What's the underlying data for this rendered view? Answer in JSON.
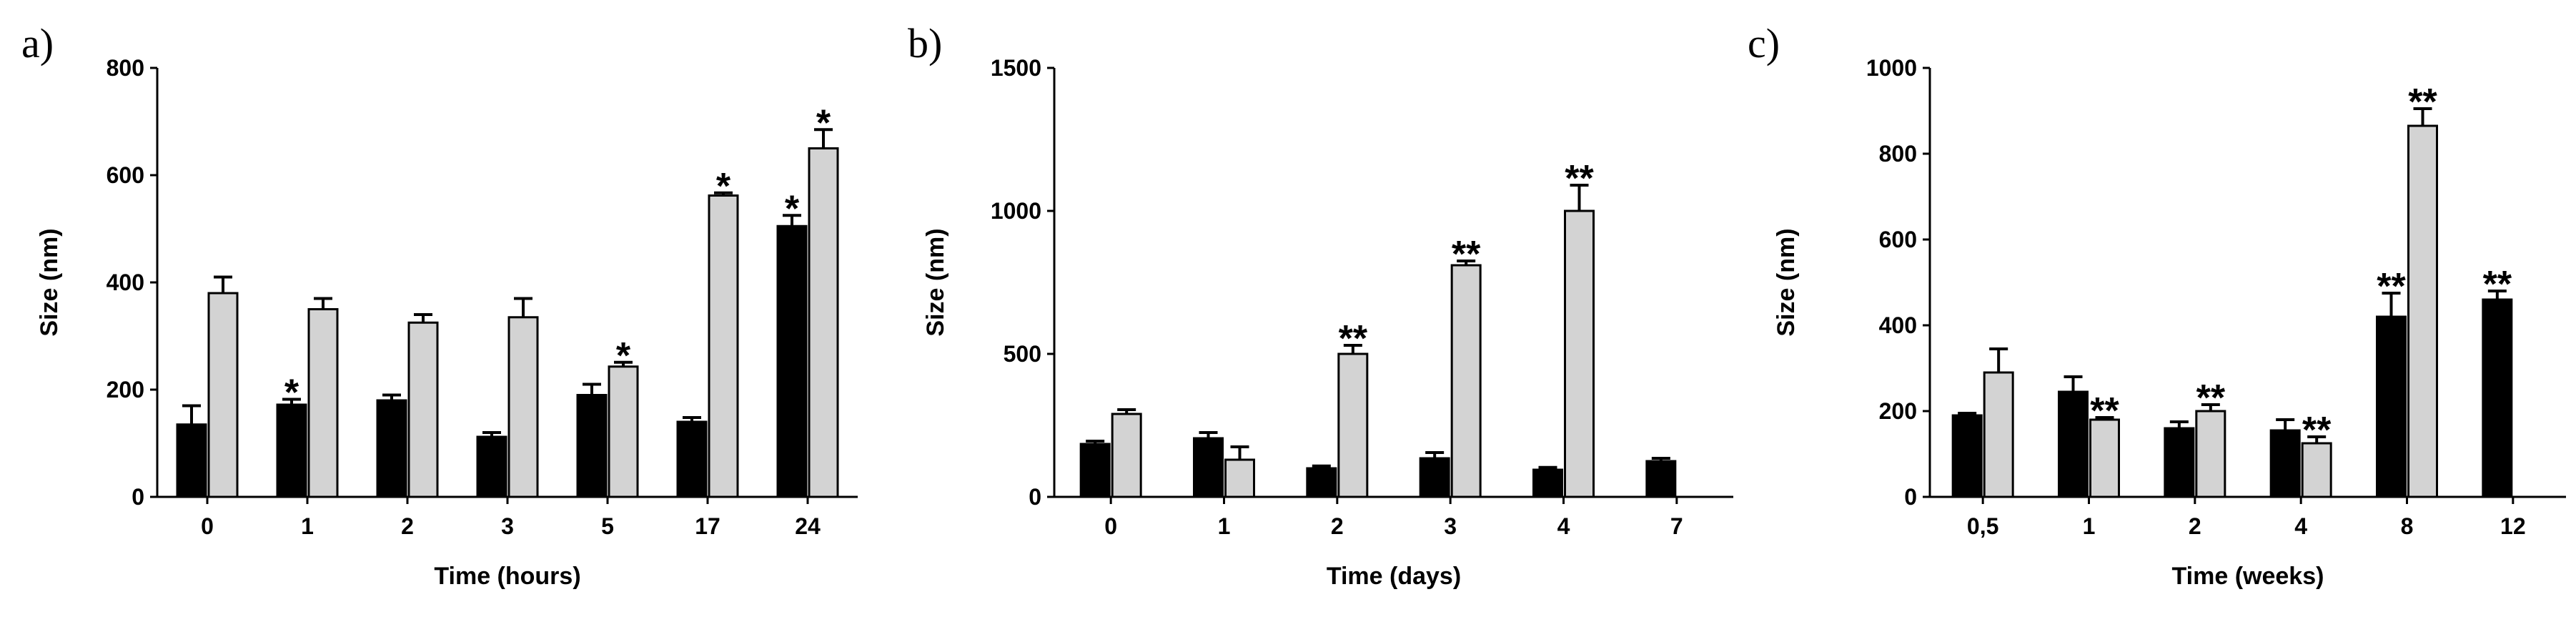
{
  "chart_data": [
    {
      "type": "bar",
      "panel_label": "a)",
      "xlabel": "Time (hours)",
      "ylabel": "Size (nm)",
      "ylim": [
        0,
        800
      ],
      "yticks": [
        0,
        200,
        400,
        600,
        800
      ],
      "categories": [
        "0",
        "1",
        "2",
        "3",
        "5",
        "17",
        "24"
      ],
      "series": [
        {
          "color": "#000000",
          "values": [
            135,
            172,
            180,
            112,
            190,
            140,
            505
          ],
          "errors": [
            35,
            10,
            10,
            8,
            20,
            8,
            20
          ],
          "marks": [
            "",
            "*",
            "",
            "",
            "",
            "",
            "*"
          ]
        },
        {
          "color": "#d3d3d3",
          "values": [
            380,
            350,
            325,
            335,
            243,
            562,
            650
          ],
          "errors": [
            30,
            20,
            15,
            35,
            8,
            5,
            35
          ],
          "marks": [
            "",
            "",
            "",
            "",
            "*",
            "*",
            "*"
          ]
        }
      ],
      "grid": false
    },
    {
      "type": "bar",
      "panel_label": "b)",
      "xlabel": "Time (days)",
      "ylabel": "Size (nm)",
      "ylim": [
        0,
        1500
      ],
      "yticks": [
        0,
        500,
        1000,
        1500
      ],
      "categories": [
        "0",
        "1",
        "2",
        "3",
        "4",
        "7"
      ],
      "series": [
        {
          "color": "#000000",
          "values": [
            185,
            205,
            100,
            135,
            95,
            125
          ],
          "errors": [
            10,
            20,
            8,
            20,
            8,
            10
          ],
          "marks": [
            "",
            "",
            "",
            "",
            "",
            ""
          ]
        },
        {
          "color": "#d3d3d3",
          "values": [
            290,
            130,
            500,
            810,
            1000,
            null
          ],
          "errors": [
            15,
            45,
            30,
            15,
            90,
            null
          ],
          "marks": [
            "",
            "",
            "**",
            "**",
            "**",
            ""
          ]
        }
      ],
      "grid": false
    },
    {
      "type": "bar",
      "panel_label": "c)",
      "xlabel": "Time (weeks)",
      "ylabel": "Size (nm)",
      "ylim": [
        0,
        1000
      ],
      "yticks": [
        0,
        200,
        400,
        600,
        800,
        1000
      ],
      "categories": [
        "0,5",
        "1",
        "2",
        "4",
        "8",
        "12"
      ],
      "series": [
        {
          "color": "#000000",
          "values": [
            190,
            245,
            160,
            155,
            420,
            460
          ],
          "errors": [
            5,
            35,
            15,
            25,
            55,
            20
          ],
          "marks": [
            "",
            "",
            "",
            "",
            "**",
            "**"
          ]
        },
        {
          "color": "#d3d3d3",
          "values": [
            290,
            180,
            200,
            125,
            865,
            null
          ],
          "errors": [
            55,
            5,
            15,
            15,
            40,
            null
          ],
          "marks": [
            "",
            "**",
            "**",
            "**",
            "**",
            ""
          ]
        }
      ],
      "grid": false
    }
  ]
}
